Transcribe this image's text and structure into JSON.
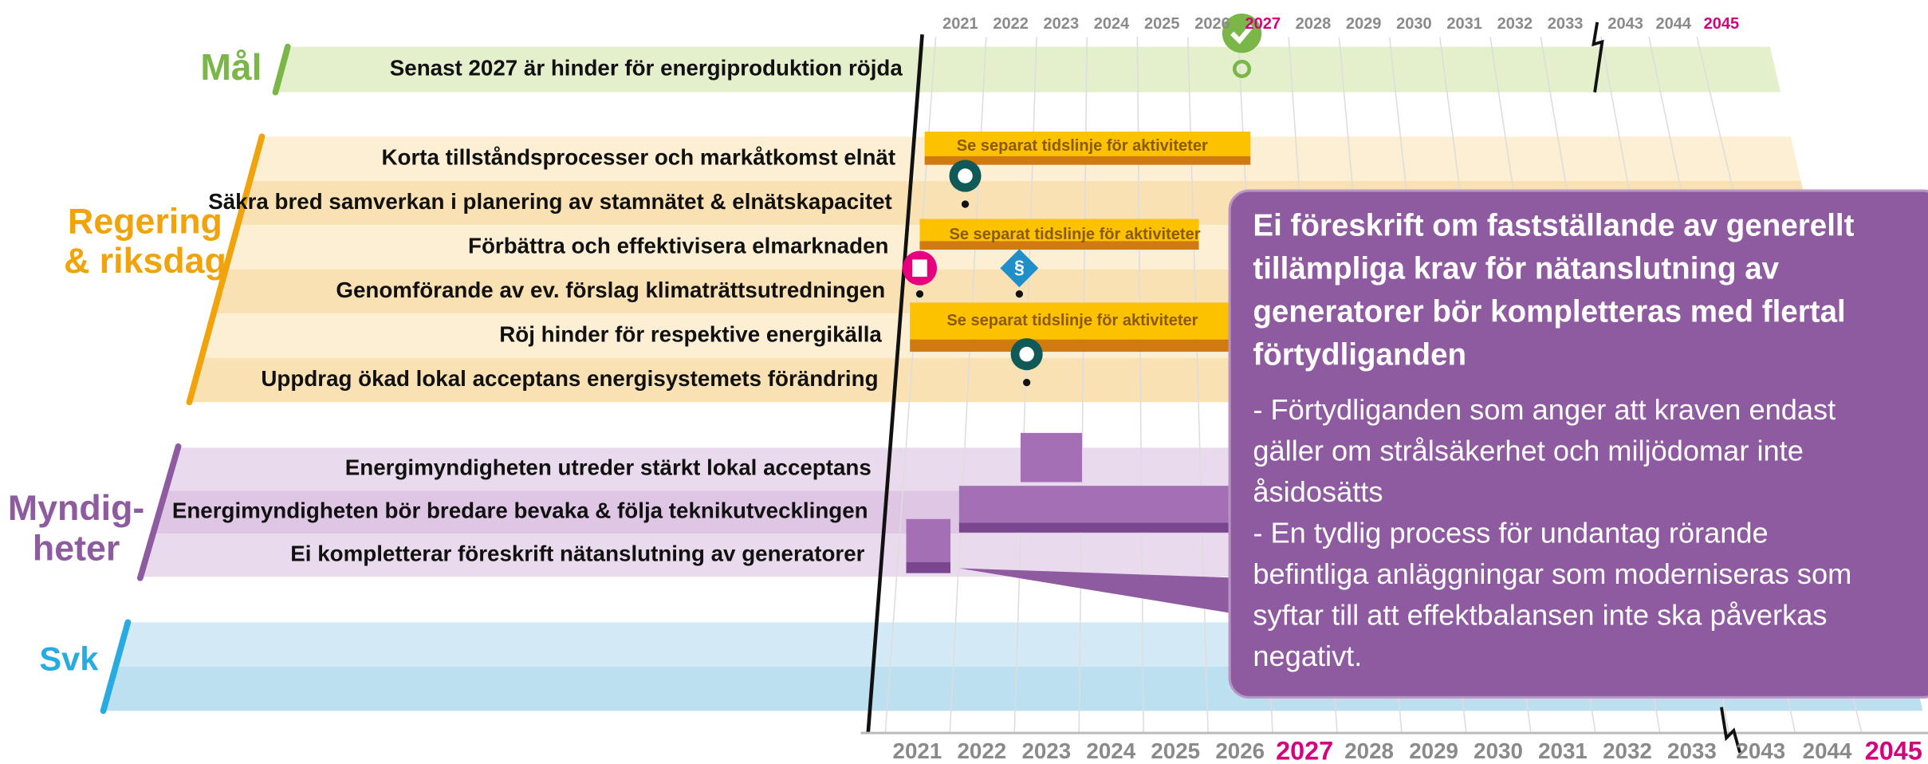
{
  "years": [
    "2021",
    "2022",
    "2023",
    "2024",
    "2025",
    "2026",
    "2027",
    "2028",
    "2029",
    "2030",
    "2031",
    "2032",
    "2033",
    "2043",
    "2044",
    "2045"
  ],
  "groups": [
    {
      "label": [
        "Mål"
      ],
      "rows": [
        "Senast 2027 är hinder för energiproduktion röjda"
      ]
    },
    {
      "label": [
        "Regering",
        "& riksdag"
      ],
      "rows": [
        "Korta tillståndsprocesser och markåtkomst elnät",
        "Säkra bred samverkan i planering av stamnätet & elnätskapacitet",
        "Förbättra och effektivisera elmarknaden",
        "Genomförande av ev. förslag klimaträttsutredningen",
        "Röj hinder för respektive energikälla",
        "Uppdrag ökad lokal acceptans energisystemets förändring"
      ]
    },
    {
      "label": [
        "Myndig-",
        "heter"
      ],
      "rows": [
        "Energimyndigheten utreder stärkt lokal acceptans",
        "Energimyndigheten bör bredare bevaka & följa teknikutvecklingen",
        "Ei kompletterar föreskrift nätanslutning av generatorer"
      ]
    },
    {
      "label": [
        "Svk"
      ],
      "rows": []
    }
  ],
  "bars": [
    "Se separat tidslinje för aktiviteter",
    "Se separat tidslinje för aktiviteter",
    "Se separat tidslinje för aktiviteter"
  ],
  "callout": {
    "title": [
      "Ei föreskrift om fastställande av generellt",
      "tillämpliga krav för nätanslutning av",
      "generatorer bör kompletteras med flertal",
      "förtydliganden"
    ],
    "body": [
      "- Förtydliganden som anger att kraven endast",
      "gäller om strålsäkerhet och miljödomar inte",
      "åsidosätts",
      "- En tydlig process för undantag rörande",
      "befintliga anläggningar som moderniseras som",
      "syftar till att effektbalansen inte ska påverkas",
      "negativt."
    ]
  }
}
